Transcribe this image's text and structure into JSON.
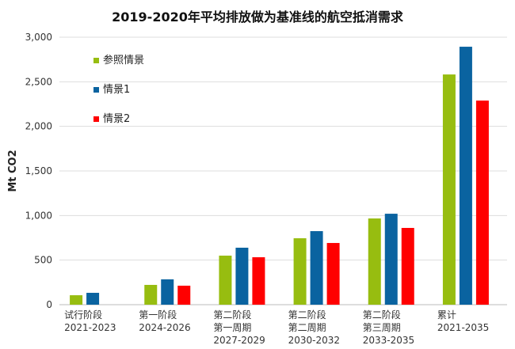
{
  "chart_data": {
    "type": "bar",
    "title": "2019-2020年平均排放做为基准线的航空抵消需求",
    "ylabel": "Mt CO2",
    "xlabel": "",
    "ylim": [
      0,
      3000
    ],
    "yticks": [
      "0",
      "500",
      "1,000",
      "1,500",
      "2,000",
      "2,500",
      "3,000"
    ],
    "ytick_values": [
      0,
      500,
      1000,
      1500,
      2000,
      2500,
      3000
    ],
    "grid": true,
    "legend_position": "top-left",
    "categories": [
      [
        "试行阶段",
        "2021-2023"
      ],
      [
        "第一阶段",
        "2024-2026"
      ],
      [
        "第二阶段",
        "第一周期",
        "2027-2029"
      ],
      [
        "第二阶段",
        "第二周期",
        "2030-2032"
      ],
      [
        "第二阶段",
        "第三周期",
        "2033-2035"
      ],
      [
        "累计",
        "2021-2035"
      ]
    ],
    "series": [
      {
        "name": "参照情景",
        "color": "#97bd10",
        "values": [
          106,
          222,
          550,
          745,
          967,
          2582
        ]
      },
      {
        "name": "情景1",
        "color": "#0a63a0",
        "values": [
          133,
          284,
          639,
          825,
          1020,
          2893
        ]
      },
      {
        "name": "情景2",
        "color": "#ff0000",
        "values": [
          null,
          213,
          532,
          692,
          861,
          2289
        ]
      }
    ]
  }
}
